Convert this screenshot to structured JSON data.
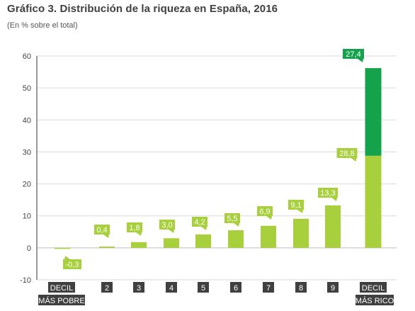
{
  "title": "Gráfico 3. Distribución de la riqueza en España, 2016",
  "subtitle": "(En % sobre el total)",
  "chart_data": {
    "type": "bar",
    "title": "Gráfico 3. Distribución de la riqueza en España, 2016",
    "subtitle": "(En % sobre el total)",
    "xlabel": "",
    "ylabel": "",
    "ylim": [
      -10,
      60
    ],
    "yticks": [
      60,
      50,
      40,
      30,
      20,
      10,
      0,
      -10
    ],
    "ytick_labels": [
      "60",
      "50",
      "40",
      "30",
      "20",
      "10",
      "0",
      "-10"
    ],
    "grid": true,
    "categories": [
      [
        "DECIL",
        "MÁS POBRE"
      ],
      [
        "2"
      ],
      [
        "3"
      ],
      [
        "4"
      ],
      [
        "5"
      ],
      [
        "6"
      ],
      [
        "7"
      ],
      [
        "8"
      ],
      [
        "9"
      ],
      [
        "DECIL",
        "MÁS RICO"
      ]
    ],
    "values": [
      -0.3,
      0.4,
      1.8,
      3.0,
      4.2,
      5.5,
      6.9,
      9.1,
      13.3,
      28.8
    ],
    "value_labels": [
      "-0,3",
      "0,4",
      "1,8",
      "3,0",
      "4,2",
      "5,5",
      "6,9",
      "9,1",
      "13,3",
      "28,8"
    ],
    "stacked_top": {
      "category_index": 9,
      "value": 27.4,
      "label": "27,4"
    },
    "colors": {
      "bar": "#a8cf3c",
      "bar_top": "#14a24a",
      "label_bg": "#a8cf3c",
      "label_top_bg": "#14a24a",
      "category_bg": "#404040",
      "grid": "#d9d9d9",
      "axis": "#333333"
    }
  }
}
